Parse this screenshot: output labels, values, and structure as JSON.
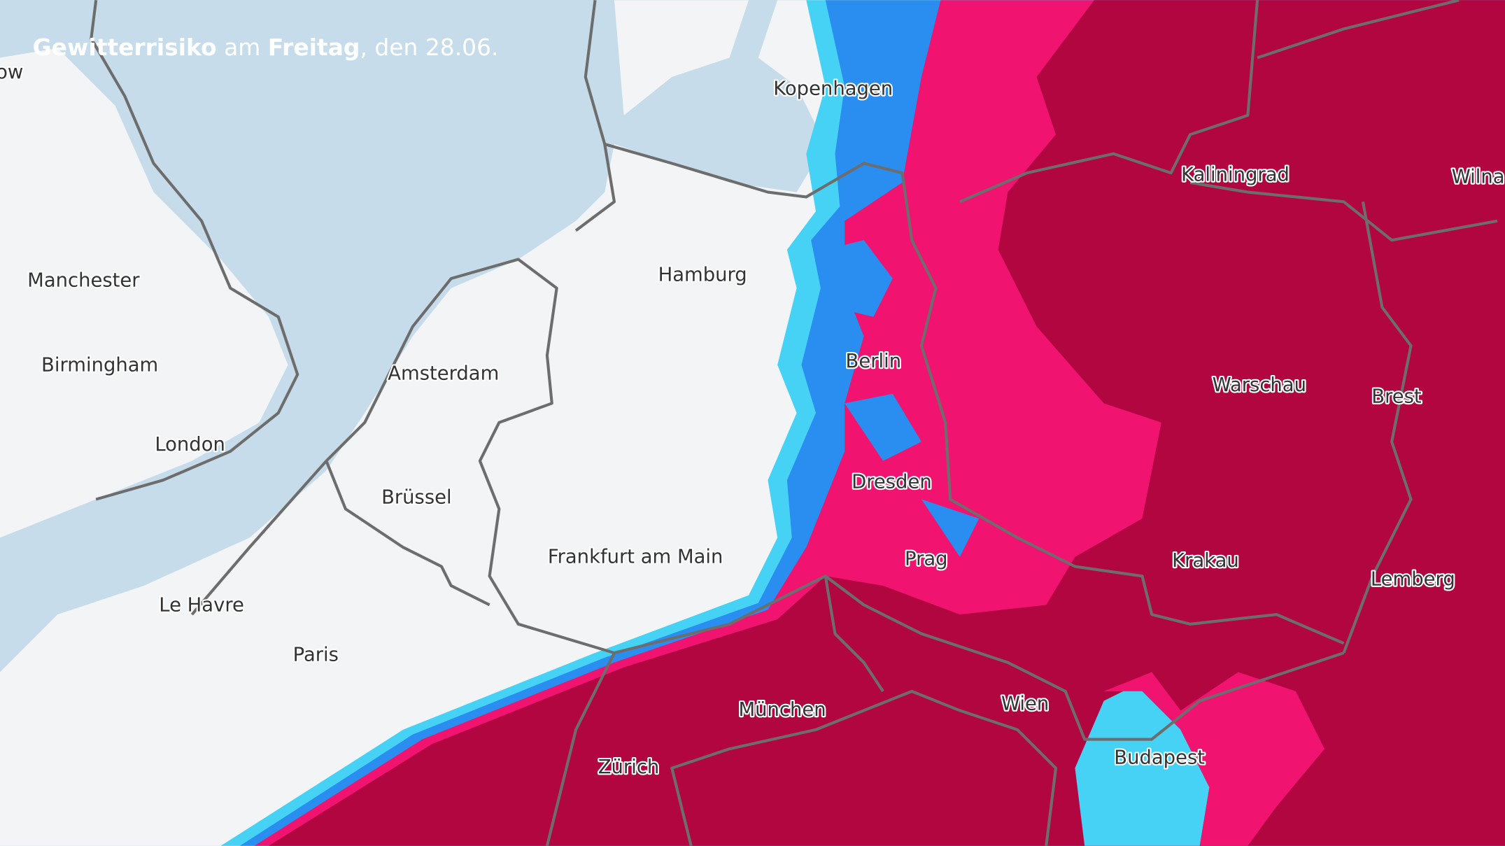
{
  "title": {
    "parts": [
      "Gewitterrisiko",
      " am ",
      "Freitag",
      ", den 28.06."
    ]
  },
  "cities": [
    "ow",
    "Kopenhagen",
    "Kaliningrad",
    "Wilna",
    "Manchester",
    "Hamburg",
    "Birmingham",
    "Amsterdam",
    "Berlin",
    "Warschau",
    "Brest",
    "London",
    "Brüssel",
    "Dresden",
    "Frankfurt am Main",
    "Prag",
    "Krakau",
    "Lemberg",
    "Le Havre",
    "Paris",
    "München",
    "Wien",
    "Zürich",
    "Budapest"
  ]
}
